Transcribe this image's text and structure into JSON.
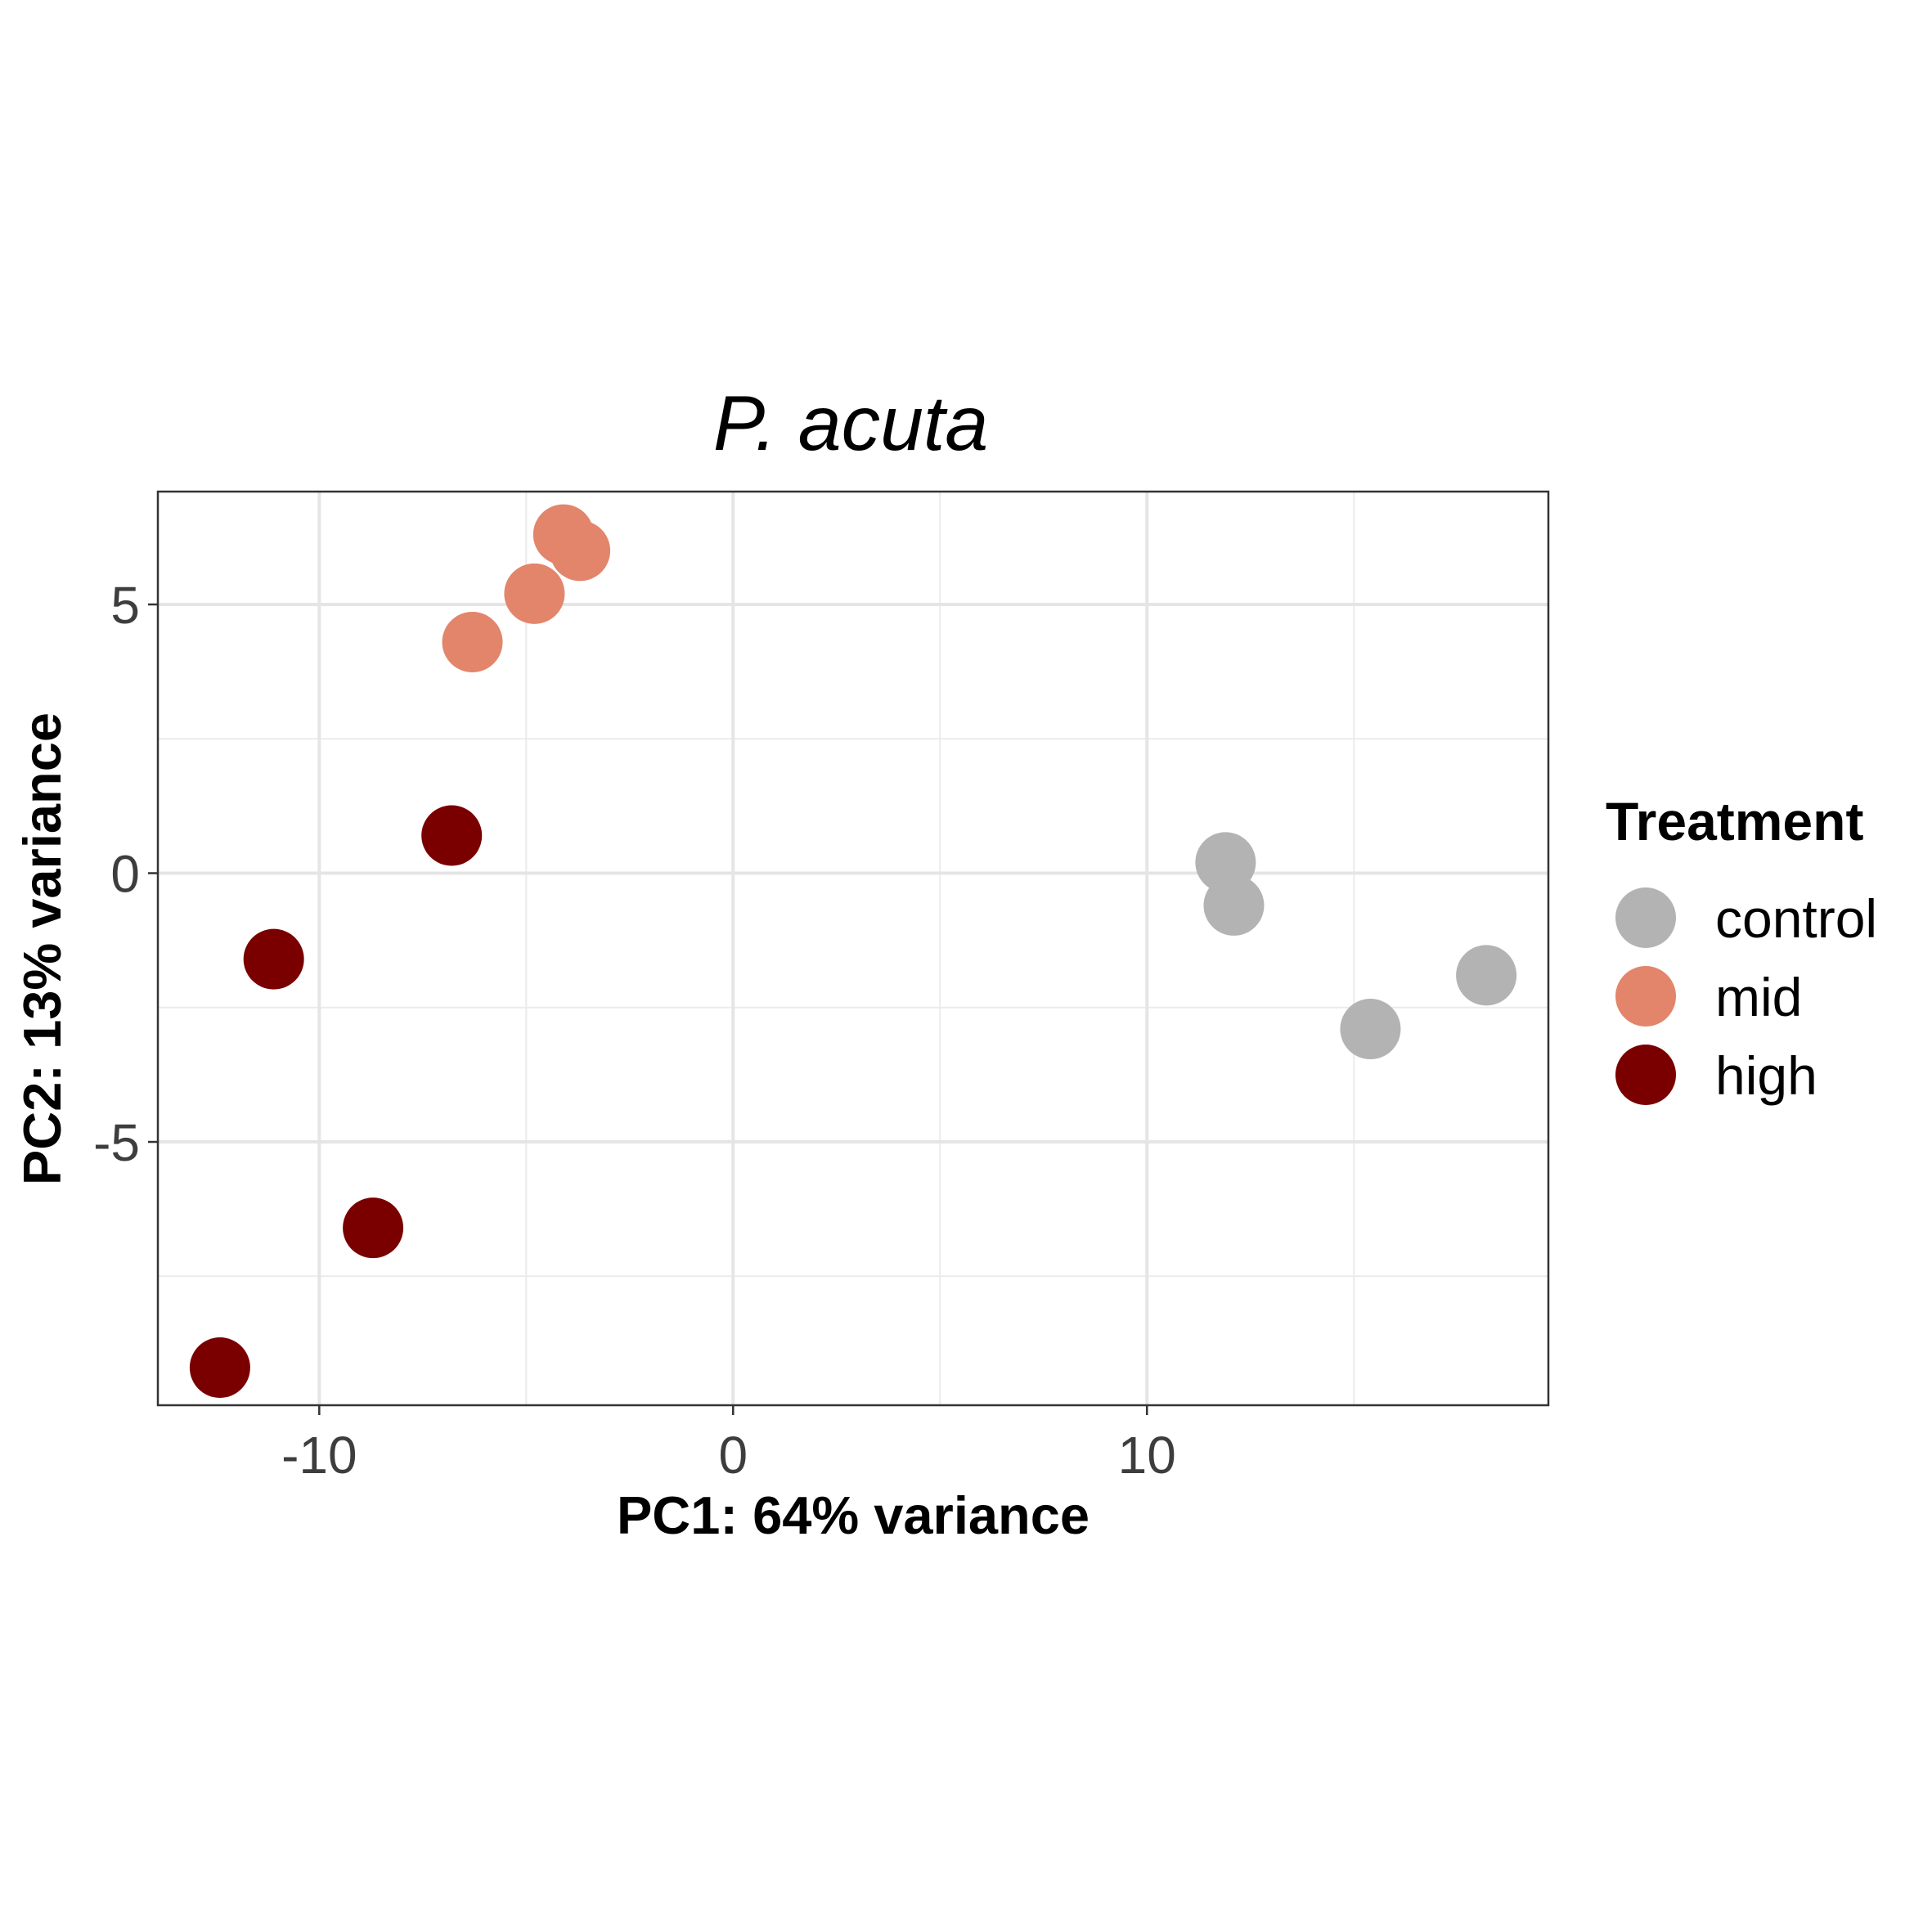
{
  "chart_data": {
    "type": "scatter",
    "title": "P. acuta",
    "xlabel": "PC1: 64% variance",
    "ylabel": "PC2: 13% variance",
    "xlim": [
      -13.9,
      19.7
    ],
    "ylim": [
      -9.9,
      7.1
    ],
    "x_ticks": [
      -10,
      0,
      10
    ],
    "y_ticks": [
      5,
      0,
      -5
    ],
    "x_tick_labels": [
      "-10",
      "0",
      "10"
    ],
    "y_tick_labels": [
      "5",
      "0",
      "-5"
    ],
    "grid": true,
    "legend": {
      "title": "Treatment",
      "position": "right"
    },
    "series": [
      {
        "name": "control",
        "color": "#b3b3b3",
        "points": [
          {
            "x": 11.9,
            "y": 0.2
          },
          {
            "x": 12.1,
            "y": -0.6
          },
          {
            "x": 15.4,
            "y": -2.9
          },
          {
            "x": 18.2,
            "y": -1.9
          }
        ]
      },
      {
        "name": "mid",
        "color": "#e3856b",
        "points": [
          {
            "x": -6.3,
            "y": 4.3
          },
          {
            "x": -4.8,
            "y": 5.2
          },
          {
            "x": -4.1,
            "y": 6.3
          },
          {
            "x": -3.7,
            "y": 6.0
          }
        ]
      },
      {
        "name": "high",
        "color": "#7a0000",
        "points": [
          {
            "x": -6.8,
            "y": 0.7
          },
          {
            "x": -11.1,
            "y": -1.6
          },
          {
            "x": -8.7,
            "y": -6.6
          },
          {
            "x": -12.4,
            "y": -9.2
          }
        ]
      }
    ]
  }
}
